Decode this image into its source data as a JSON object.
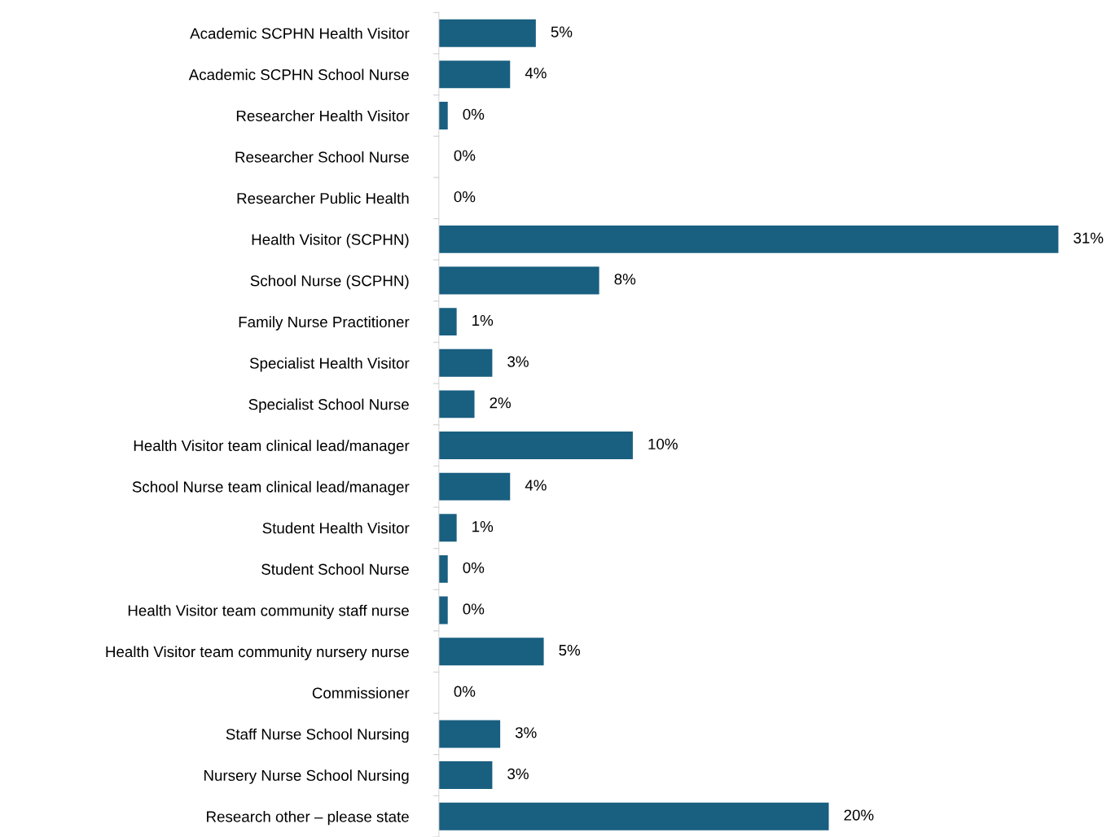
{
  "chart_data": {
    "type": "bar",
    "orientation": "horizontal",
    "categories": [
      "Academic SCPHN Health Visitor",
      "Academic SCPHN School Nurse",
      "Researcher Health Visitor",
      "Researcher School Nurse",
      "Researcher Public Health",
      "Health Visitor (SCPHN)",
      "School Nurse (SCPHN)",
      "Family Nurse Practitioner",
      "Specialist Health Visitor",
      "Specialist School Nurse",
      "Health Visitor team clinical lead/manager",
      "School Nurse team clinical lead/manager",
      "Student Health Visitor",
      "Student School Nurse",
      "Health Visitor team community staff nurse",
      "Health Visitor team community nursery nurse",
      "Commissioner",
      "Staff Nurse School Nursing",
      "Nursery Nurse School Nursing",
      "Research other – please state"
    ],
    "values": [
      4.9,
      3.6,
      0.45,
      0,
      0,
      31.3,
      8.1,
      0.9,
      2.7,
      1.8,
      9.8,
      3.6,
      0.9,
      0.45,
      0.45,
      5.3,
      0,
      3.1,
      2.7,
      19.7
    ],
    "value_labels": [
      "5%",
      "4%",
      "0%",
      "0%",
      "0%",
      "31%",
      "8%",
      "1%",
      "3%",
      "2%",
      "10%",
      "4%",
      "1%",
      "0%",
      "0%",
      "5%",
      "0%",
      "3%",
      "3%",
      "20%"
    ],
    "color": "#195f80",
    "grid": false,
    "legend": false,
    "tick_labels": "y"
  }
}
